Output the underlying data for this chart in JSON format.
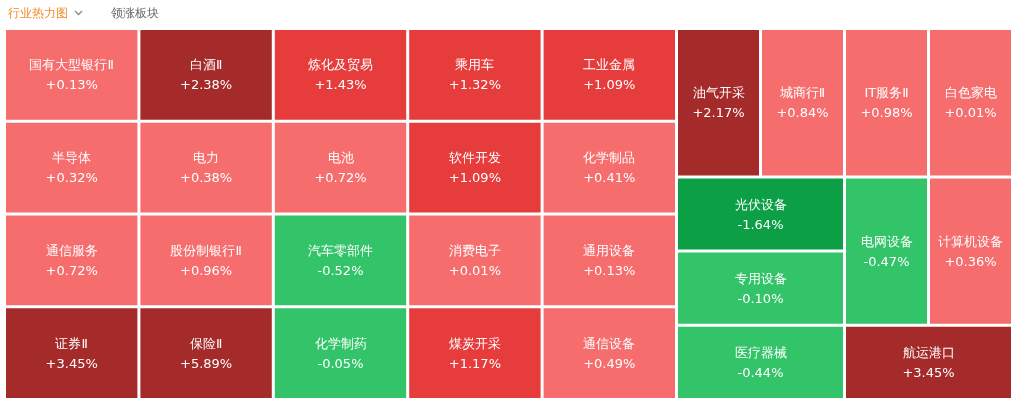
{
  "chart_data": {
    "type": "other",
    "title": "行业热力图",
    "subtitle": "领涨板块",
    "categories": [
      "国有大型银行Ⅱ",
      "半导体",
      "通信服务",
      "证券Ⅱ",
      "白酒Ⅱ",
      "电力",
      "股份制银行Ⅱ",
      "保险Ⅱ",
      "炼化及贸易",
      "电池",
      "汽车零部件",
      "化学制药",
      "乘用车",
      "软件开发",
      "消费电子",
      "煤炭开采",
      "工业金属",
      "化学制品",
      "通用设备",
      "通信设备",
      "油气开采",
      "城商行Ⅱ",
      "IT服务Ⅱ",
      "白色家电",
      "光伏设备",
      "专用设备",
      "医疗器械",
      "电网设备",
      "计算机设备",
      "航运港口"
    ],
    "values": [
      0.13,
      0.32,
      0.72,
      3.45,
      2.38,
      0.38,
      0.96,
      5.89,
      1.43,
      0.72,
      -0.52,
      -0.05,
      1.32,
      1.09,
      0.01,
      1.17,
      1.09,
      0.41,
      0.13,
      0.49,
      2.17,
      0.84,
      0.98,
      0.01,
      -1.64,
      -0.1,
      -0.44,
      -0.47,
      0.36,
      3.45
    ],
    "value_labels": [
      "+0.13%",
      "+0.32%",
      "+0.72%",
      "+3.45%",
      "+2.38%",
      "+0.38%",
      "+0.96%",
      "+5.89%",
      "+1.43%",
      "+0.72%",
      "-0.52%",
      "-0.05%",
      "+1.32%",
      "+1.09%",
      "+0.01%",
      "+1.17%",
      "+1.09%",
      "+0.41%",
      "+0.13%",
      "+0.49%",
      "+2.17%",
      "+0.84%",
      "+0.98%",
      "+0.01%",
      "-1.64%",
      "-0.10%",
      "-0.44%",
      "-0.47%",
      "+0.36%",
      "+3.45%"
    ]
  }
}
